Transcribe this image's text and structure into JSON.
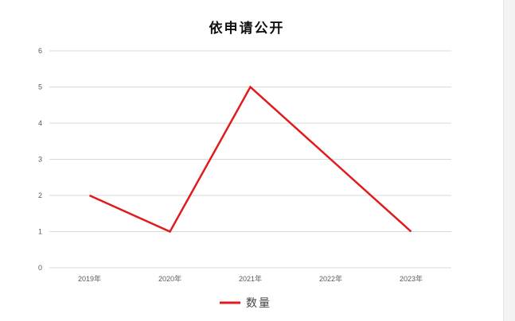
{
  "chart_data": {
    "type": "line",
    "title": "依申请公开",
    "categories": [
      "2019年",
      "2020年",
      "2021年",
      "2022年",
      "2023年"
    ],
    "series": [
      {
        "name": "数量",
        "values": [
          2,
          1,
          5,
          3,
          1
        ],
        "color": "#e31a1c"
      }
    ],
    "ylim": [
      0,
      6
    ],
    "yticks": [
      "0",
      "1",
      "2",
      "3",
      "4",
      "5",
      "6"
    ],
    "grid": true,
    "legend": "bottom",
    "xlabel": "",
    "ylabel": ""
  }
}
